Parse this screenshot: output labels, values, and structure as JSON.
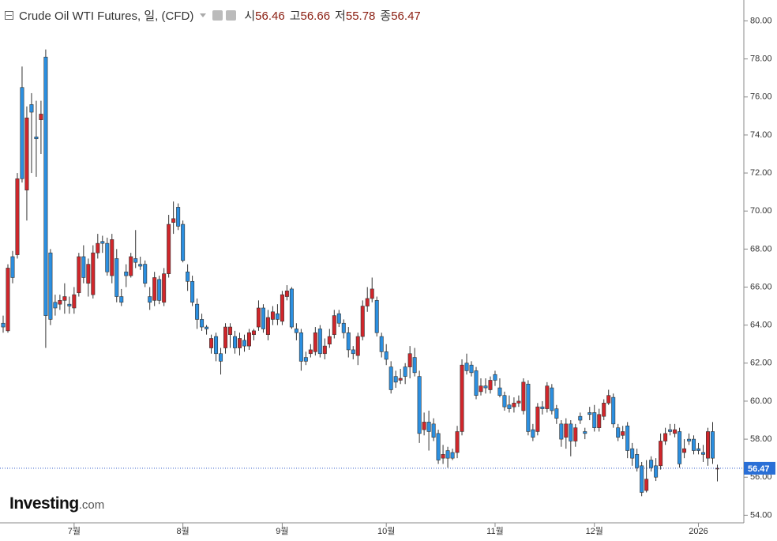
{
  "chart_data": {
    "type": "candlestick",
    "title": "Crude Oil WTI Futures, 일, (CFD)",
    "legend_values": [
      {
        "label": "시",
        "value": 56.46
      },
      {
        "label": "고",
        "value": 56.66
      },
      {
        "label": "저",
        "value": 55.78
      },
      {
        "label": "종",
        "value": 56.47
      }
    ],
    "watermark": {
      "brand": "Investing",
      "suffix": ".com"
    },
    "up_color": "#d0262b",
    "down_color": "#2b8fe0",
    "ylim": [
      53.6,
      81.1
    ],
    "yticks": [
      {
        "value": 54,
        "label": "54.00"
      },
      {
        "value": 56,
        "label": "56.00"
      },
      {
        "value": 58,
        "label": "58.00"
      },
      {
        "value": 60,
        "label": "60.00"
      },
      {
        "value": 62,
        "label": "62.00"
      },
      {
        "value": 64,
        "label": "64.00"
      },
      {
        "value": 66,
        "label": "66.00"
      },
      {
        "value": 68,
        "label": "68.00"
      },
      {
        "value": 70,
        "label": "70.00"
      },
      {
        "value": 72,
        "label": "72.00"
      },
      {
        "value": 74,
        "label": "74.00"
      },
      {
        "value": 76,
        "label": "76.00"
      },
      {
        "value": 78,
        "label": "78.00"
      },
      {
        "value": 80,
        "label": "80.00"
      }
    ],
    "categories": [
      null,
      null,
      null,
      null,
      null,
      null,
      null,
      null,
      null,
      null,
      null,
      null,
      null,
      null,
      null,
      "7월",
      null,
      null,
      null,
      null,
      null,
      null,
      null,
      null,
      null,
      null,
      null,
      null,
      null,
      null,
      null,
      null,
      null,
      null,
      null,
      null,
      null,
      null,
      "8월",
      null,
      null,
      null,
      null,
      null,
      null,
      null,
      null,
      null,
      null,
      null,
      null,
      null,
      null,
      null,
      null,
      null,
      null,
      null,
      null,
      "9월",
      null,
      null,
      null,
      null,
      null,
      null,
      null,
      null,
      null,
      null,
      null,
      null,
      null,
      null,
      null,
      null,
      null,
      null,
      null,
      null,
      null,
      "10월",
      null,
      null,
      null,
      null,
      null,
      null,
      null,
      null,
      null,
      null,
      null,
      null,
      null,
      null,
      null,
      null,
      null,
      null,
      null,
      null,
      null,
      null,
      "11월",
      null,
      null,
      null,
      null,
      null,
      null,
      null,
      null,
      null,
      null,
      null,
      null,
      null,
      null,
      null,
      null,
      null,
      null,
      null,
      null,
      "12월",
      null,
      null,
      null,
      null,
      null,
      null,
      null,
      null,
      null,
      null,
      null,
      null,
      null,
      null,
      null,
      null,
      null,
      null,
      null,
      null,
      null,
      "2026",
      null,
      null,
      null,
      null
    ],
    "open": [
      64.1,
      63.7,
      67.6,
      67.7,
      76.5,
      71.1,
      75.6,
      73.9,
      74.8,
      78.1,
      67.8,
      65.2,
      65.1,
      65.3,
      65.1,
      64.9,
      65.7,
      67.6,
      66.2,
      65.6,
      67.8,
      68.4,
      68.3,
      66.6,
      67.5,
      65.5,
      66.8,
      66.6,
      67.5,
      67.2,
      67.2,
      65.5,
      65.3,
      66.4,
      65.2,
      66.7,
      69.4,
      70.2,
      69.3,
      66.8,
      66.3,
      65.1,
      64.3,
      63.9,
      62.8,
      63.4,
      62.5,
      62.8,
      63.5,
      63.4,
      62.8,
      63.2,
      62.9,
      63.5,
      63.9,
      64.9,
      63.5,
      64.3,
      64.6,
      64.2,
      65.5,
      65.9,
      63.8,
      63.6,
      62.3,
      62.5,
      62.6,
      63.8,
      62.5,
      63.0,
      63.5,
      64.6,
      64.1,
      63.6,
      62.7,
      62.4,
      63.4,
      65.0,
      65.4,
      65.3,
      63.4,
      62.6,
      61.8,
      61.3,
      61.1,
      61.8,
      61.8,
      62.3,
      61.3,
      58.5,
      58.9,
      58.8,
      58.3,
      57.0,
      57.4,
      57.3,
      57.3,
      58.4,
      62.0,
      61.9,
      61.6,
      60.5,
      60.8,
      60.6,
      61.4,
      60.7,
      60.3,
      59.8,
      59.7,
      59.9,
      59.5,
      60.9,
      58.5,
      58.4,
      59.7,
      59.6,
      60.7,
      59.6,
      58.8,
      58.1,
      58.8,
      57.9,
      59.2,
      58.4,
      59.4,
      59.4,
      58.6,
      59.2,
      59.9,
      60.2,
      58.6,
      58.2,
      58.7,
      57.5,
      57.2,
      56.6,
      55.3,
      56.9,
      56.6,
      56.6,
      57.9,
      58.5,
      58.3,
      58.4,
      57.3,
      58.0,
      58.0,
      57.5,
      57.3,
      57.0,
      58.4,
      56.46
    ],
    "high": [
      64.5,
      67.2,
      67.9,
      72.0,
      77.6,
      75.5,
      76.2,
      75.8,
      75.8,
      78.5,
      68.0,
      65.6,
      65.6,
      66.2,
      65.5,
      66.0,
      67.8,
      68.2,
      67.5,
      68.2,
      68.8,
      68.7,
      68.6,
      68.8,
      68.0,
      65.9,
      67.2,
      67.8,
      69.0,
      67.6,
      67.4,
      66.0,
      66.8,
      66.6,
      67.0,
      69.8,
      70.5,
      70.4,
      69.5,
      67.2,
      66.6,
      65.4,
      64.6,
      64.0,
      63.5,
      63.6,
      62.8,
      64.1,
      64.1,
      63.7,
      63.6,
      63.5,
      63.8,
      63.8,
      65.3,
      65.1,
      64.8,
      65.0,
      65.1,
      65.8,
      66.1,
      66.0,
      64.1,
      63.8,
      62.6,
      63.0,
      63.9,
      64.0,
      63.3,
      63.8,
      64.8,
      64.8,
      64.3,
      63.9,
      62.9,
      63.6,
      65.3,
      66.0,
      66.5,
      65.5,
      63.6,
      63.0,
      62.1,
      61.6,
      61.7,
      62.0,
      62.9,
      62.8,
      61.6,
      59.4,
      59.5,
      59.1,
      58.5,
      57.7,
      57.6,
      57.5,
      58.7,
      62.2,
      62.5,
      62.1,
      61.8,
      61.2,
      61.2,
      61.3,
      61.6,
      61.2,
      60.5,
      60.3,
      60.2,
      60.3,
      61.2,
      61.1,
      58.8,
      59.9,
      60.0,
      61.0,
      60.9,
      59.8,
      59.0,
      59.1,
      59.0,
      58.8,
      59.4,
      58.6,
      59.7,
      59.8,
      59.6,
      60.1,
      60.6,
      60.4,
      58.8,
      58.7,
      58.9,
      57.8,
      57.5,
      56.8,
      56.9,
      57.1,
      57.0,
      58.3,
      58.6,
      58.8,
      58.8,
      58.6,
      58.0,
      58.3,
      58.2,
      57.8,
      57.7,
      58.6,
      58.9,
      56.66
    ],
    "low": [
      63.6,
      63.6,
      66.2,
      67.5,
      71.5,
      69.5,
      72.0,
      71.8,
      73.0,
      62.8,
      64.0,
      64.5,
      64.8,
      64.6,
      64.6,
      64.6,
      65.5,
      66.2,
      65.5,
      65.4,
      67.5,
      67.8,
      66.6,
      66.2,
      65.2,
      65.0,
      66.0,
      66.5,
      67.0,
      66.9,
      66.0,
      64.8,
      65.0,
      65.1,
      65.0,
      66.5,
      68.8,
      69.0,
      67.3,
      65.8,
      65.0,
      63.8,
      63.7,
      63.5,
      62.5,
      62.1,
      61.4,
      62.5,
      62.8,
      62.5,
      62.4,
      62.6,
      62.7,
      63.2,
      63.7,
      63.6,
      63.2,
      64.0,
      64.0,
      64.0,
      65.3,
      63.8,
      63.2,
      61.6,
      61.9,
      62.3,
      62.4,
      62.3,
      62.2,
      62.8,
      63.3,
      63.9,
      63.3,
      62.3,
      62.2,
      61.9,
      63.2,
      64.7,
      65.2,
      63.4,
      62.3,
      61.9,
      60.4,
      60.7,
      60.9,
      60.9,
      61.2,
      61.3,
      57.8,
      58.2,
      57.4,
      57.9,
      56.7,
      56.7,
      56.5,
      56.9,
      57.0,
      58.2,
      61.4,
      61.3,
      60.1,
      60.3,
      60.4,
      60.4,
      60.8,
      60.2,
      59.5,
      59.4,
      59.4,
      59.7,
      59.3,
      58.2,
      57.9,
      58.2,
      59.3,
      59.4,
      59.3,
      58.8,
      57.6,
      57.5,
      57.1,
      57.6,
      58.8,
      58.0,
      59.0,
      58.4,
      58.4,
      59.0,
      59.8,
      58.6,
      57.9,
      58.0,
      57.0,
      56.6,
      56.3,
      55.0,
      55.2,
      56.3,
      55.8,
      56.4,
      57.7,
      58.2,
      58.1,
      56.5,
      57.0,
      57.7,
      57.2,
      57.2,
      56.8,
      56.6,
      56.7,
      55.78
    ],
    "close": [
      63.9,
      67.0,
      66.5,
      71.7,
      71.7,
      74.9,
      75.2,
      73.8,
      75.1,
      64.5,
      64.3,
      64.9,
      65.3,
      65.5,
      65.0,
      65.6,
      67.6,
      66.5,
      67.2,
      67.8,
      68.3,
      68.3,
      66.8,
      68.5,
      65.5,
      65.2,
      66.6,
      67.6,
      67.3,
      67.1,
      66.2,
      65.2,
      66.5,
      65.3,
      66.7,
      69.3,
      69.6,
      69.2,
      67.4,
      66.3,
      65.2,
      64.3,
      63.9,
      63.8,
      63.3,
      62.5,
      62.1,
      63.9,
      63.9,
      62.8,
      63.3,
      62.9,
      63.6,
      63.7,
      64.9,
      63.8,
      64.4,
      64.7,
      64.3,
      65.6,
      65.8,
      63.9,
      63.6,
      62.1,
      62.1,
      62.7,
      63.6,
      62.5,
      62.9,
      63.4,
      64.5,
      64.1,
      63.6,
      62.7,
      62.5,
      63.4,
      65.0,
      65.4,
      65.9,
      63.6,
      62.6,
      62.2,
      60.6,
      61.0,
      61.2,
      61.3,
      62.5,
      61.5,
      58.3,
      58.9,
      58.4,
      58.1,
      56.9,
      57.2,
      57.0,
      57.0,
      58.4,
      61.9,
      61.6,
      61.5,
      60.3,
      60.8,
      60.7,
      61.1,
      61.1,
      60.3,
      59.7,
      59.6,
      59.9,
      60.0,
      61.0,
      58.4,
      58.1,
      59.7,
      59.6,
      60.8,
      59.5,
      59.1,
      58.0,
      58.8,
      57.9,
      58.6,
      59.0,
      58.3,
      59.3,
      58.6,
      59.3,
      59.9,
      60.3,
      58.8,
      58.1,
      58.4,
      57.4,
      57.0,
      56.5,
      55.2,
      55.9,
      56.5,
      56.0,
      57.9,
      58.3,
      58.4,
      58.5,
      56.7,
      57.5,
      57.9,
      57.4,
      57.4,
      57.2,
      58.4,
      57.0,
      56.47
    ]
  }
}
